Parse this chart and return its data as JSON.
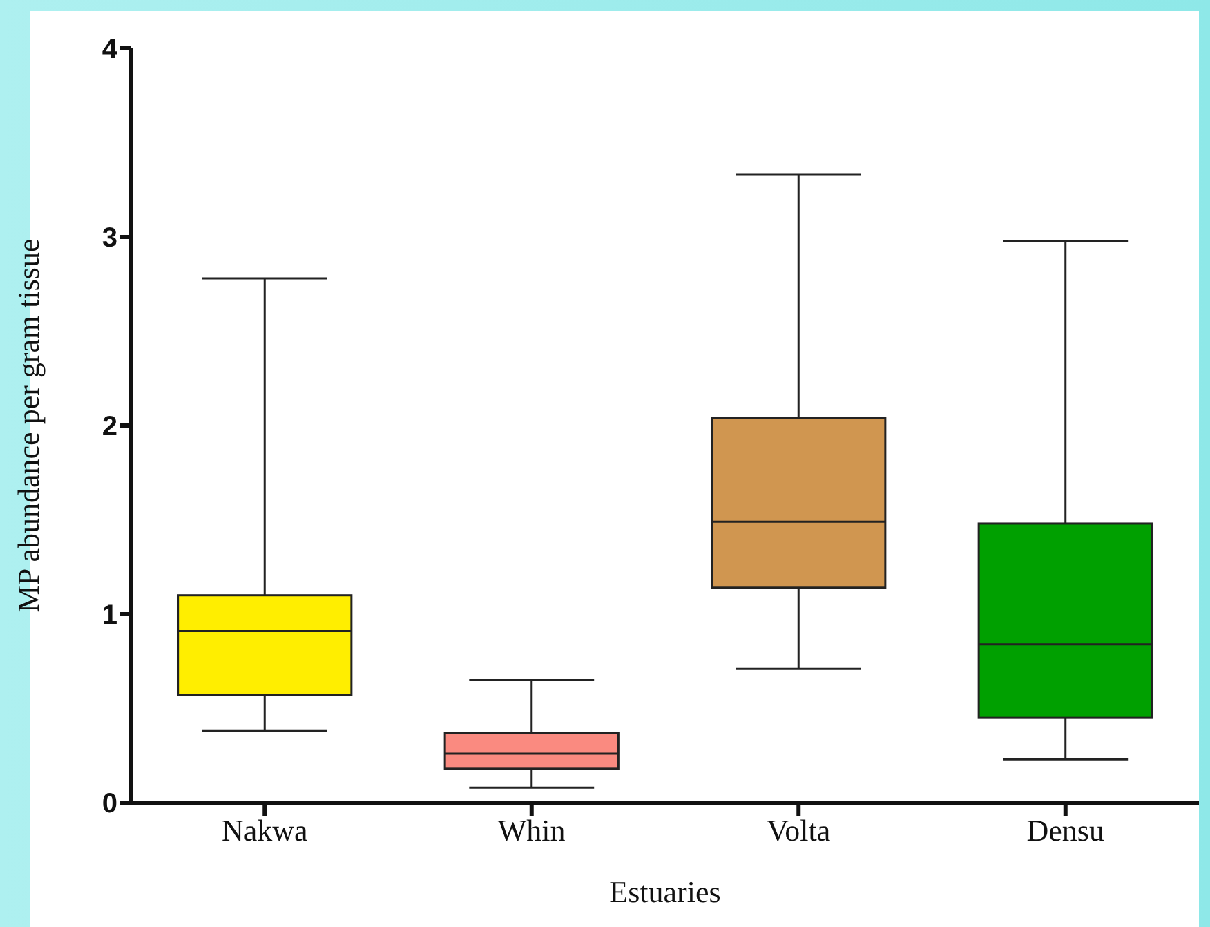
{
  "chart_data": {
    "type": "box",
    "xlabel": "Estuaries",
    "ylabel": "MP abundance per gram tissue",
    "categories": [
      "Nakwa",
      "Whin",
      "Volta",
      "Densu"
    ],
    "colors": [
      "#ffee00",
      "#fa8a80",
      "#d09650",
      "#00a000"
    ],
    "boxes": [
      {
        "low": 0.38,
        "q1": 0.57,
        "median": 0.91,
        "q3": 1.1,
        "high": 2.78
      },
      {
        "low": 0.08,
        "q1": 0.18,
        "median": 0.26,
        "q3": 0.37,
        "high": 0.65
      },
      {
        "low": 0.71,
        "q1": 1.14,
        "median": 1.49,
        "q3": 2.04,
        "high": 3.33
      },
      {
        "low": 0.23,
        "q1": 0.45,
        "median": 0.84,
        "q3": 1.48,
        "high": 2.98
      }
    ],
    "ylim": [
      0,
      4
    ],
    "yticks": [
      0,
      1,
      2,
      3,
      4
    ],
    "grid": false,
    "legend": false
  }
}
